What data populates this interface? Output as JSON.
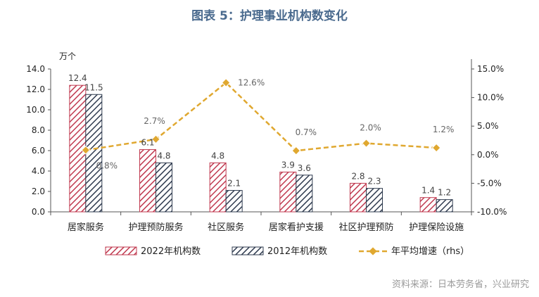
{
  "title": "图表 5：护理事业机构数变化",
  "source": "资料来源：日本劳务省，兴业研究",
  "colors": {
    "title": "#4a6a8e",
    "series_2022": "#c0394f",
    "series_2012": "#2f3b4f",
    "growth_line": "#e0a830"
  },
  "chart_data": {
    "type": "bar",
    "title": "图表 5：护理事业机构数变化",
    "ylabel": "万个",
    "ylim": [
      0,
      14
    ],
    "yticks": [
      "0.0",
      "2.0",
      "4.0",
      "6.0",
      "8.0",
      "10.0",
      "12.0",
      "14.0"
    ],
    "y2lim": [
      -10,
      15
    ],
    "y2ticks": [
      "15.0%",
      "10.0%",
      "5.0%",
      "0.0%",
      "-5.0%",
      "-10.0%"
    ],
    "categories": [
      "居家服务",
      "护理预防服务",
      "社区服务",
      "居家看护支援",
      "社区护理预防",
      "护理保险设施"
    ],
    "series": [
      {
        "name": "2022年机构数",
        "values": [
          12.4,
          6.1,
          4.8,
          3.9,
          2.8,
          1.4
        ],
        "labels": [
          "12.4",
          "6.1",
          "4.8",
          "3.9",
          "2.8",
          "1.4"
        ],
        "pattern": "hatch",
        "color": "#c0394f"
      },
      {
        "name": "2012年机构数",
        "values": [
          11.5,
          4.8,
          2.1,
          3.6,
          2.3,
          1.2
        ],
        "labels": [
          "11.5",
          "4.8",
          "2.1",
          "3.6",
          "2.3",
          "1.2"
        ],
        "pattern": "hatch",
        "color": "#2f3b4f"
      },
      {
        "name": "年平均增速（rhs）",
        "type": "line",
        "axis": "right",
        "values": [
          0.8,
          2.7,
          12.6,
          0.7,
          2.0,
          1.2
        ],
        "labels": [
          "0.8%",
          "2.7%",
          "12.6%",
          "0.7%",
          "2.0%",
          "1.2%"
        ],
        "color": "#e0a830"
      }
    ],
    "legend_position": "bottom",
    "grid": false
  }
}
